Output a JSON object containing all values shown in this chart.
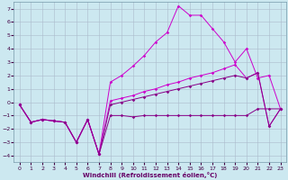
{
  "xlabel": "Windchill (Refroidissement éolien,°C)",
  "background_color": "#cce8f0",
  "grid_color": "#aabbcc",
  "line_color": "#cc00cc",
  "line_color2": "#880088",
  "xlim": [
    -0.5,
    23.5
  ],
  "ylim": [
    -4.5,
    7.5
  ],
  "xticks": [
    0,
    1,
    2,
    3,
    4,
    5,
    6,
    7,
    8,
    9,
    10,
    11,
    12,
    13,
    14,
    15,
    16,
    17,
    18,
    19,
    20,
    21,
    22,
    23
  ],
  "yticks": [
    -4,
    -3,
    -2,
    -1,
    0,
    1,
    2,
    3,
    4,
    5,
    6,
    7
  ],
  "x_all": [
    0,
    1,
    2,
    3,
    4,
    5,
    6,
    7,
    8,
    9,
    10,
    11,
    12,
    13,
    14,
    15,
    16,
    17,
    18,
    19,
    20,
    21,
    22,
    23
  ],
  "y_zigzag": [
    -0.2,
    -1.5,
    -1.3,
    -1.4,
    -1.5,
    -3.0,
    -1.3,
    -3.9,
    -1.0,
    -1.0,
    -1.1,
    -1.0,
    -1.0,
    -1.0,
    -1.0,
    -1.0,
    -1.0,
    -1.0,
    -1.0,
    -1.0,
    -1.0,
    -0.5,
    -0.5,
    -0.5
  ],
  "y_big": [
    -0.2,
    -1.5,
    -1.3,
    -1.4,
    -1.5,
    -3.0,
    -1.3,
    -3.9,
    1.5,
    2.0,
    2.7,
    3.5,
    4.5,
    5.2,
    7.2,
    6.5,
    6.5,
    5.5,
    4.5,
    3.0,
    4.0,
    1.8,
    2.0,
    -0.5
  ],
  "y_lin1": [
    -0.2,
    -1.5,
    -1.3,
    -1.4,
    -1.5,
    -3.0,
    -1.3,
    -3.9,
    0.1,
    0.3,
    0.5,
    0.8,
    1.0,
    1.3,
    1.5,
    1.8,
    2.0,
    2.2,
    2.5,
    2.8,
    1.8,
    2.2,
    -1.8,
    -0.5
  ],
  "y_lin2": [
    -0.2,
    -1.5,
    -1.3,
    -1.4,
    -1.5,
    -3.0,
    -1.3,
    -3.9,
    -0.2,
    0.0,
    0.2,
    0.4,
    0.6,
    0.8,
    1.0,
    1.2,
    1.4,
    1.6,
    1.8,
    2.0,
    1.8,
    2.2,
    -1.8,
    -0.5
  ]
}
